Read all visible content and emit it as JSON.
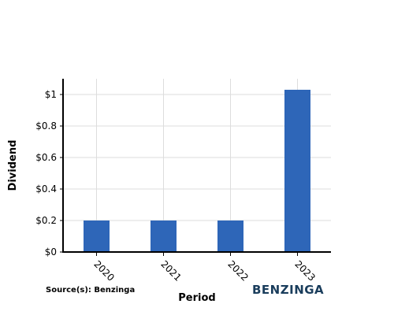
{
  "source_text": "Source(s): Benzinga",
  "brand": {
    "text": "BENZINGA",
    "color": "#1a3d5c"
  },
  "chart_data": {
    "type": "bar",
    "categories": [
      "2020",
      "2021",
      "2022",
      "2023"
    ],
    "values": [
      0.2,
      0.2,
      0.2,
      1.03
    ],
    "xlabel": "Period",
    "ylabel": "Dividend",
    "ylim": [
      0,
      1.1
    ],
    "yticks": [
      0,
      0.2,
      0.4,
      0.6,
      0.8,
      1
    ],
    "ytick_labels": [
      "$0",
      "$0.2",
      "$0.4",
      "$0.6",
      "$0.8",
      "$1"
    ],
    "bar_color": "#2e66b8",
    "grid": true
  }
}
